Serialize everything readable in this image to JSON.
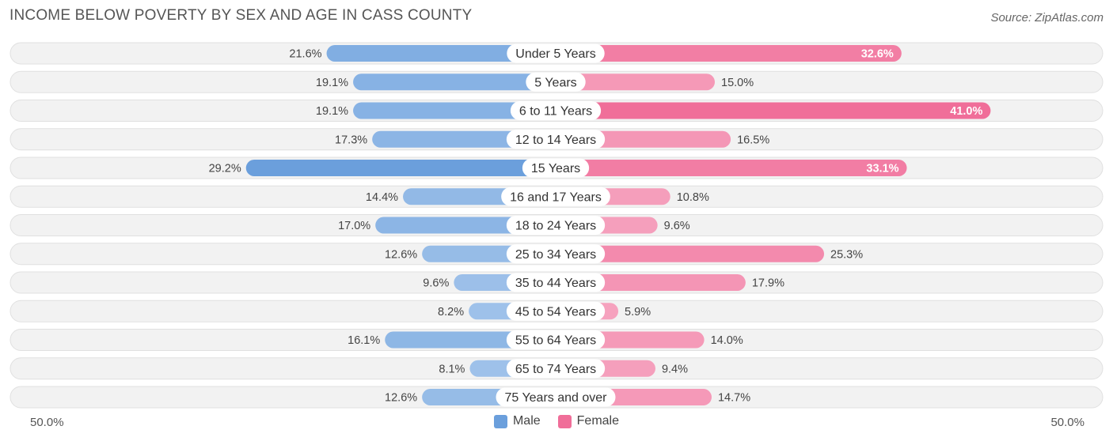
{
  "title": "INCOME BELOW POVERTY BY SEX AND AGE IN CASS COUNTY",
  "source": "Source: ZipAtlas.com",
  "chart_data": {
    "type": "bar",
    "orientation": "horizontal-diverging",
    "title": "INCOME BELOW POVERTY BY SEX AND AGE IN CASS COUNTY",
    "categories": [
      "Under 5 Years",
      "5 Years",
      "6 to 11 Years",
      "12 to 14 Years",
      "15 Years",
      "16 and 17 Years",
      "18 to 24 Years",
      "25 to 34 Years",
      "35 to 44 Years",
      "45 to 54 Years",
      "55 to 64 Years",
      "65 to 74 Years",
      "75 Years and over"
    ],
    "series": [
      {
        "name": "Male",
        "values": [
          21.6,
          19.1,
          19.1,
          17.3,
          29.2,
          14.4,
          17.0,
          12.6,
          9.6,
          8.2,
          16.1,
          8.1,
          12.6
        ]
      },
      {
        "name": "Female",
        "values": [
          32.6,
          15.0,
          41.0,
          16.5,
          33.1,
          10.8,
          9.6,
          25.3,
          17.9,
          5.9,
          14.0,
          9.4,
          14.7
        ]
      }
    ],
    "value_labels": {
      "male": [
        "21.6%",
        "19.1%",
        "19.1%",
        "17.3%",
        "29.2%",
        "14.4%",
        "17.0%",
        "12.6%",
        "9.6%",
        "8.2%",
        "16.1%",
        "8.1%",
        "12.6%"
      ],
      "female": [
        "32.6%",
        "15.0%",
        "41.0%",
        "16.5%",
        "33.1%",
        "10.8%",
        "9.6%",
        "25.3%",
        "17.9%",
        "5.9%",
        "14.0%",
        "9.4%",
        "14.7%"
      ]
    },
    "xlim": [
      -50,
      50
    ],
    "axis_left_label": "50.0%",
    "axis_right_label": "50.0%",
    "legend": [
      "Male",
      "Female"
    ],
    "legend_position": "bottom-center",
    "colors": {
      "male_light": "#a7c7ec",
      "male_dark": "#6b9fdc",
      "female_light": "#f6a5c0",
      "female_dark": "#f06e99",
      "row_bg": "#f2f2f2",
      "row_border": "#e0e0e0"
    }
  }
}
